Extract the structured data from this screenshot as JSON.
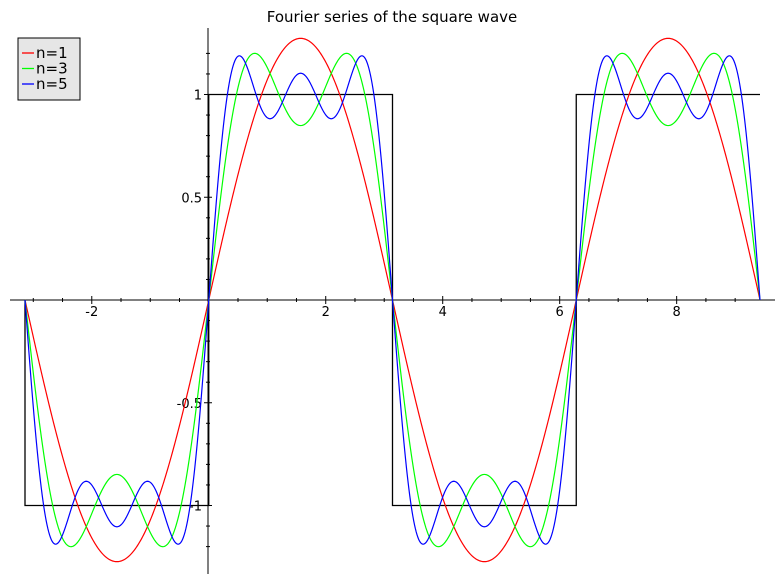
{
  "chart_data": {
    "type": "line",
    "title": "Fourier series of the square wave",
    "xlabel": "",
    "ylabel": "",
    "xlim": [
      -3.14159,
      9.42478
    ],
    "ylim": [
      -1.3,
      1.3
    ],
    "x_ticks": [
      {
        "value": -2,
        "label": "-2"
      },
      {
        "value": 2,
        "label": "2"
      },
      {
        "value": 4,
        "label": "4"
      },
      {
        "value": 6,
        "label": "6"
      },
      {
        "value": 8,
        "label": "8"
      }
    ],
    "y_ticks": [
      {
        "value": -1,
        "label": "-1"
      },
      {
        "value": -0.5,
        "label": "-0.5"
      },
      {
        "value": 0.5,
        "label": "0.5"
      },
      {
        "value": 1,
        "label": "1"
      }
    ],
    "grid": false,
    "legend_position": "top-left",
    "square_wave": {
      "color": "#000000",
      "x": [
        -3.14159,
        -3.14159,
        0,
        0,
        3.14159,
        3.14159,
        6.28319,
        6.28319,
        9.42478
      ],
      "y": [
        0,
        -1,
        -1,
        1,
        1,
        -1,
        -1,
        1,
        1
      ]
    },
    "series": [
      {
        "name": "n=1",
        "color": "#ff0000",
        "terms": 1
      },
      {
        "name": "n=3",
        "color": "#00ff00",
        "terms": 2
      },
      {
        "name": "n=5",
        "color": "#0000ff",
        "terms": 3
      }
    ]
  }
}
